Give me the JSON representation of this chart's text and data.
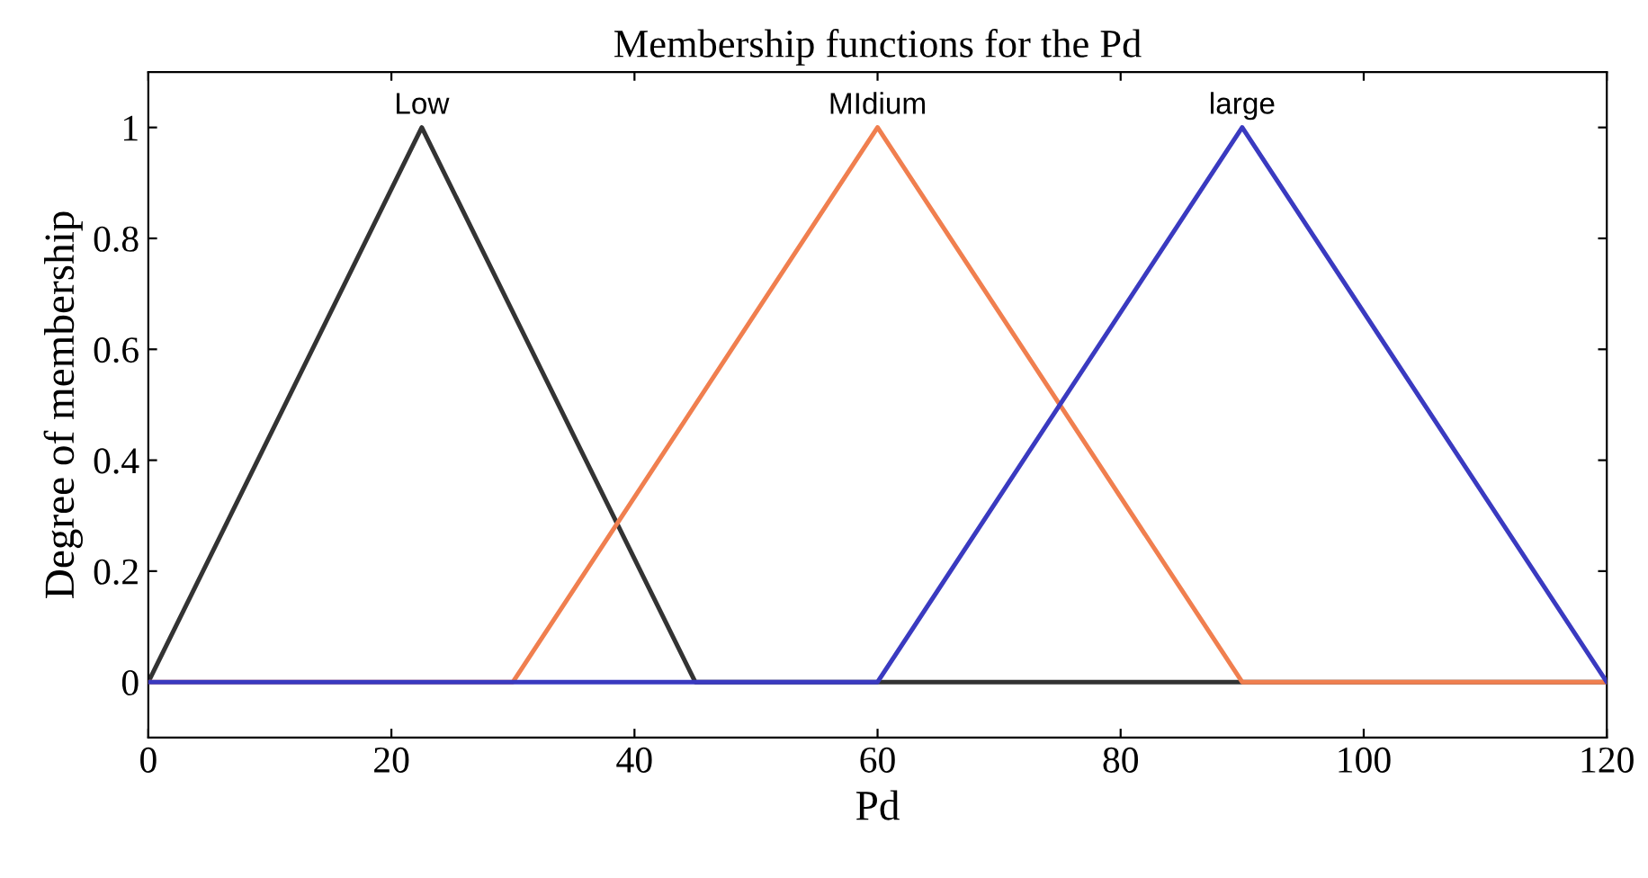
{
  "chart_data": {
    "type": "line",
    "title": "Membership functions for the Pd",
    "xlabel": "Pd",
    "ylabel": "Degree of membership",
    "series": [
      {
        "name": "Low",
        "color": "#333333",
        "x": [
          0,
          22.5,
          45,
          120
        ],
        "values": [
          0,
          1,
          0,
          0
        ]
      },
      {
        "name": "MIdium",
        "color": "#f07f4f",
        "x": [
          0,
          30,
          60,
          90,
          120
        ],
        "values": [
          0,
          0,
          1,
          0,
          0
        ]
      },
      {
        "name": "large",
        "color": "#3a3ac0",
        "x": [
          0,
          60,
          90,
          120
        ],
        "values": [
          0,
          0,
          1,
          0
        ]
      }
    ],
    "xlim": [
      0,
      120
    ],
    "ylim": [
      -0.1,
      1.1
    ],
    "xticks": [
      0,
      20,
      40,
      60,
      80,
      100,
      120
    ],
    "yticks": [
      0,
      0.2,
      0.4,
      0.6,
      0.8,
      1
    ],
    "grid": false,
    "legend": false,
    "marker": "none",
    "line_style": "solid"
  }
}
